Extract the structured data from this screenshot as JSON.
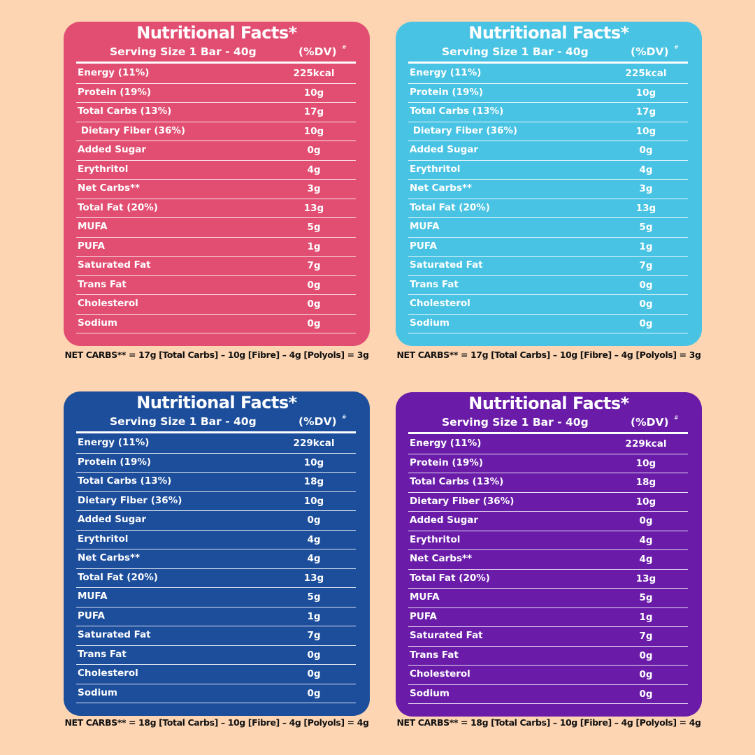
{
  "panels": [
    {
      "color": "#e24e72",
      "title": "Nutritional Facts*",
      "serving": "Serving Size 1 Bar - 40g",
      "dv": "(%DV)",
      "hash": "#",
      "rows": [
        [
          "Energy (11%)",
          "225kcal"
        ],
        [
          "Protein (19%)",
          "10g"
        ],
        [
          "Total Carbs (13%)",
          "17g"
        ],
        [
          " Dietary Fiber (36%)",
          "10g"
        ],
        [
          "Added Sugar",
          "0g"
        ],
        [
          "Erythritol",
          "4g"
        ],
        [
          "Net Carbs**",
          "3g"
        ],
        [
          "Total Fat (20%)",
          "13g"
        ],
        [
          "MUFA",
          "5g"
        ],
        [
          "PUFA",
          "1g"
        ],
        [
          "Saturated Fat",
          "7g"
        ],
        [
          "Trans Fat",
          "0g"
        ],
        [
          "Cholesterol",
          "0g"
        ],
        [
          "Sodium",
          "0g"
        ]
      ],
      "note": "NET CARBS** = 17g [Total Carbs] – 10g [Fibre] – 4g [Polyols] = 3g"
    },
    {
      "color": "#49c3e3",
      "title": "Nutritional Facts*",
      "serving": "Serving Size 1 Bar - 40g",
      "dv": "(%DV)",
      "hash": "#",
      "rows": [
        [
          "Energy (11%)",
          "225kcal"
        ],
        [
          "Protein (19%)",
          "10g"
        ],
        [
          "Total Carbs (13%)",
          "17g"
        ],
        [
          " Dietary Fiber (36%)",
          "10g"
        ],
        [
          "Added Sugar",
          "0g"
        ],
        [
          "Erythritol",
          "4g"
        ],
        [
          "Net Carbs**",
          "3g"
        ],
        [
          "Total Fat (20%)",
          "13g"
        ],
        [
          "MUFA",
          "5g"
        ],
        [
          "PUFA",
          "1g"
        ],
        [
          "Saturated Fat",
          "7g"
        ],
        [
          "Trans Fat",
          "0g"
        ],
        [
          "Cholesterol",
          "0g"
        ],
        [
          "Sodium",
          "0g"
        ]
      ],
      "note": "NET CARBS** = 17g [Total Carbs] – 10g [Fibre] – 4g [Polyols] = 3g"
    },
    {
      "color": "#1c4e9c",
      "title": "Nutritional Facts*",
      "serving": "Serving Size 1 Bar - 40g",
      "dv": "(%DV)",
      "hash": "#",
      "rows": [
        [
          "Energy (11%)",
          "229kcal"
        ],
        [
          "Protein (19%)",
          "10g"
        ],
        [
          "Total Carbs (13%)",
          "18g"
        ],
        [
          "Dietary Fiber (36%)",
          "10g"
        ],
        [
          "Added Sugar",
          "0g"
        ],
        [
          "Erythritol",
          "4g"
        ],
        [
          "Net Carbs**",
          "4g"
        ],
        [
          "Total Fat (20%)",
          "13g"
        ],
        [
          "MUFA",
          "5g"
        ],
        [
          "PUFA",
          "1g"
        ],
        [
          "Saturated Fat",
          "7g"
        ],
        [
          "Trans Fat",
          "0g"
        ],
        [
          "Cholesterol",
          "0g"
        ],
        [
          "Sodium",
          "0g"
        ]
      ],
      "note": "NET CARBS** = 18g [Total Carbs] – 10g [Fibre] – 4g [Polyols] = 4g"
    },
    {
      "color": "#6a1ca9",
      "title": "Nutritional Facts*",
      "serving": "Serving Size 1 Bar - 40g",
      "dv": "(%DV)",
      "hash": "#",
      "rows": [
        [
          "Energy (11%)",
          "229kcal"
        ],
        [
          "Protein (19%)",
          "10g"
        ],
        [
          "Total Carbs (13%)",
          "18g"
        ],
        [
          "Dietary Fiber (36%)",
          "10g"
        ],
        [
          "Added Sugar",
          "0g"
        ],
        [
          "Erythritol",
          "4g"
        ],
        [
          "Net Carbs**",
          "4g"
        ],
        [
          "Total Fat (20%)",
          "13g"
        ],
        [
          "MUFA",
          "5g"
        ],
        [
          "PUFA",
          "1g"
        ],
        [
          "Saturated Fat",
          "7g"
        ],
        [
          "Trans Fat",
          "0g"
        ],
        [
          "Cholesterol",
          "0g"
        ],
        [
          "Sodium",
          "0g"
        ]
      ],
      "note": "NET CARBS** = 18g [Total Carbs] – 10g [Fibre] – 4g [Polyols] = 4g"
    }
  ]
}
